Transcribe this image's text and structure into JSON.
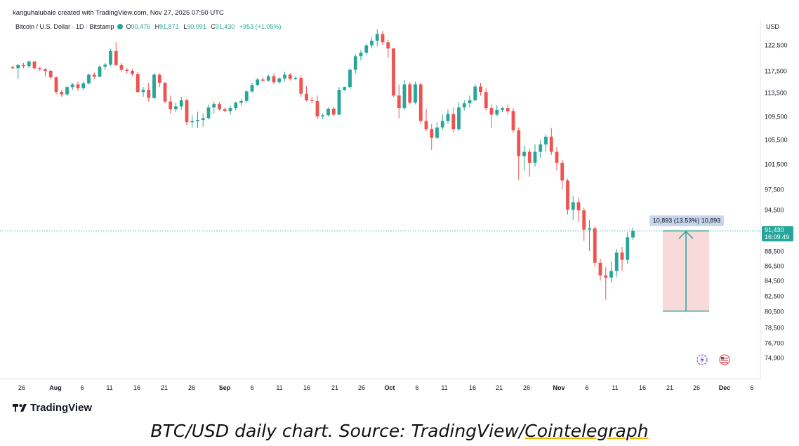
{
  "header": {
    "created_line": "kanguhalubale created with TradingView.com, Nov 27, 2025 07:50 UTC",
    "symbol": "Bitcoin / U.S. Dollar · 1D · Bitstamp",
    "open_label": "O",
    "open": "90,476",
    "high_label": "H",
    "high": "91,871",
    "low_label": "L",
    "low": "90,091",
    "close_label": "C",
    "close": "91,430",
    "change": "+953 (+1.05%)",
    "currency": "USD"
  },
  "brand": {
    "name": "TradingView",
    "logo_icon": "tradingview-logo-icon"
  },
  "caption": {
    "prefix": "BTC/USD daily chart. Source: TradingView/",
    "link": "Cointelegraph"
  },
  "colors": {
    "up": "#26a69a",
    "down": "#ef5350",
    "measure_fill": "#f8d4d4",
    "measure_line": "#26a69a",
    "price_label": "#26a69a"
  },
  "chart_data": {
    "type": "candlestick",
    "interval": "1D",
    "y_axis": {
      "ticks": [
        122500,
        117500,
        113500,
        109500,
        105500,
        101500,
        97500,
        94500,
        88500,
        86500,
        84500,
        82500,
        80500,
        78500,
        76700,
        74900
      ],
      "tick_labels": [
        "122,500",
        "117,500",
        "113,500",
        "109,500",
        "105,500",
        "101,500",
        "97,500",
        "94,500",
        "88,500",
        "86,500",
        "84,500",
        "82,500",
        "80,500",
        "78,500",
        "76,700",
        "74,900"
      ]
    },
    "x_axis": {
      "tick_labels": [
        "26",
        "Aug",
        "6",
        "11",
        "16",
        "21",
        "26",
        "Sep",
        "6",
        "11",
        "16",
        "21",
        "26",
        "Oct",
        "6",
        "11",
        "16",
        "21",
        "26",
        "Nov",
        "6",
        "11",
        "16",
        "21",
        "26",
        "Dec",
        "6"
      ],
      "bold": [
        "Aug",
        "Sep",
        "Oct",
        "Nov",
        "Dec"
      ]
    },
    "candles": [
      [
        118200,
        118500,
        117800,
        118000
      ],
      [
        118000,
        118800,
        116000,
        118600
      ],
      [
        118600,
        119000,
        118000,
        118400
      ],
      [
        118400,
        119500,
        118000,
        119300
      ],
      [
        119300,
        119400,
        117800,
        118000
      ],
      [
        118000,
        118300,
        117500,
        117800
      ],
      [
        117800,
        118000,
        116500,
        117500
      ],
      [
        117500,
        117700,
        116000,
        116300
      ],
      [
        116300,
        116500,
        113200,
        113600
      ],
      [
        113600,
        114000,
        112800,
        113200
      ],
      [
        113200,
        114800,
        112900,
        114500
      ],
      [
        114500,
        115300,
        114000,
        115000
      ],
      [
        115000,
        115500,
        113800,
        114300
      ],
      [
        114300,
        115500,
        114000,
        115200
      ],
      [
        115200,
        117000,
        115000,
        116800
      ],
      [
        116800,
        117200,
        116000,
        116400
      ],
      [
        116400,
        118600,
        116300,
        118300
      ],
      [
        118300,
        119000,
        117700,
        118700
      ],
      [
        118700,
        121700,
        118400,
        121300
      ],
      [
        121300,
        123000,
        118500,
        118600
      ],
      [
        118600,
        119000,
        117300,
        117700
      ],
      [
        117700,
        118000,
        117000,
        117500
      ],
      [
        117500,
        117800,
        116500,
        116900
      ],
      [
        116900,
        117300,
        113500,
        113600
      ],
      [
        113600,
        114500,
        112800,
        114000
      ],
      [
        114000,
        115300,
        112000,
        112600
      ],
      [
        112600,
        117100,
        112400,
        116800
      ],
      [
        116800,
        117000,
        114500,
        115300
      ],
      [
        115300,
        115400,
        111700,
        112000
      ],
      [
        112000,
        113000,
        110000,
        110700
      ],
      [
        110700,
        111800,
        110200,
        111200
      ],
      [
        111200,
        112800,
        110600,
        112200
      ],
      [
        112200,
        112500,
        108000,
        108500
      ],
      [
        108500,
        109700,
        107600,
        108700
      ],
      [
        108700,
        110300,
        107500,
        108900
      ],
      [
        108900,
        110000,
        107700,
        109200
      ],
      [
        109200,
        111500,
        109000,
        111000
      ],
      [
        111000,
        112000,
        110000,
        111600
      ],
      [
        111600,
        111900,
        110500,
        110700
      ],
      [
        110700,
        111000,
        110200,
        110400
      ],
      [
        110400,
        111300,
        109800,
        110900
      ],
      [
        110900,
        112000,
        110500,
        111800
      ],
      [
        111800,
        112500,
        111300,
        112100
      ],
      [
        112100,
        113900,
        111800,
        113700
      ],
      [
        113700,
        115300,
        113500,
        114900
      ],
      [
        114900,
        116200,
        114700,
        115900
      ],
      [
        115900,
        116300,
        115400,
        115700
      ],
      [
        115700,
        116800,
        115500,
        116500
      ],
      [
        116500,
        117000,
        115000,
        115400
      ],
      [
        115400,
        116300,
        115100,
        116100
      ],
      [
        116100,
        117300,
        115600,
        116800
      ],
      [
        116800,
        117100,
        115700,
        116000
      ],
      [
        116000,
        116500,
        115800,
        116200
      ],
      [
        116200,
        116600,
        112800,
        113300
      ],
      [
        113300,
        114700,
        112000,
        112200
      ],
      [
        112200,
        112800,
        111700,
        112100
      ],
      [
        112100,
        113000,
        109000,
        109500
      ],
      [
        109500,
        110000,
        109000,
        109700
      ],
      [
        109700,
        111000,
        109500,
        110800
      ],
      [
        110800,
        111200,
        109500,
        109800
      ],
      [
        109800,
        114500,
        109700,
        114000
      ],
      [
        114000,
        114600,
        113800,
        114500
      ],
      [
        114500,
        118000,
        114200,
        117700
      ],
      [
        117700,
        120700,
        117000,
        120300
      ],
      [
        120300,
        121500,
        119500,
        121000
      ],
      [
        121000,
        122700,
        120500,
        122400
      ],
      [
        122400,
        124000,
        121800,
        123300
      ],
      [
        123300,
        125500,
        122200,
        124600
      ],
      [
        124600,
        125200,
        122500,
        123000
      ],
      [
        123000,
        123500,
        120000,
        121800
      ],
      [
        121800,
        121900,
        112800,
        113000
      ],
      [
        113000,
        115000,
        109200,
        110900
      ],
      [
        110900,
        115800,
        110600,
        115000
      ],
      [
        115000,
        115400,
        111500,
        111800
      ],
      [
        111800,
        115500,
        111500,
        115000
      ],
      [
        115000,
        115300,
        108200,
        108700
      ],
      [
        108700,
        110800,
        107000,
        107300
      ],
      [
        107300,
        108200,
        103800,
        105800
      ],
      [
        105800,
        108500,
        105600,
        107600
      ],
      [
        107600,
        109800,
        107200,
        108700
      ],
      [
        108700,
        110700,
        108200,
        109900
      ],
      [
        109900,
        111000,
        106800,
        107300
      ],
      [
        107300,
        111800,
        107000,
        111000
      ],
      [
        111000,
        112200,
        110500,
        111700
      ],
      [
        111700,
        113000,
        111000,
        112200
      ],
      [
        112200,
        115000,
        112000,
        114600
      ],
      [
        114600,
        115300,
        113000,
        113600
      ],
      [
        113600,
        114300,
        110500,
        110900
      ],
      [
        110900,
        111500,
        107500,
        109800
      ],
      [
        109800,
        111400,
        109500,
        110600
      ],
      [
        110600,
        111100,
        110200,
        110900
      ],
      [
        110900,
        111500,
        109800,
        110400
      ],
      [
        110400,
        110900,
        106700,
        107100
      ],
      [
        107100,
        107600,
        99000,
        102800
      ],
      [
        102800,
        104500,
        100500,
        103500
      ],
      [
        103500,
        104000,
        99500,
        101700
      ],
      [
        101700,
        104700,
        101100,
        103500
      ],
      [
        103500,
        105500,
        102500,
        104700
      ],
      [
        104700,
        106300,
        103500,
        106000
      ],
      [
        106000,
        107500,
        103000,
        103500
      ],
      [
        103500,
        104300,
        100500,
        101700
      ],
      [
        101700,
        102200,
        97500,
        98900
      ],
      [
        98900,
        99200,
        93800,
        94500
      ],
      [
        94500,
        96500,
        93000,
        95600
      ],
      [
        95600,
        96300,
        92700,
        94400
      ],
      [
        94400,
        94800,
        90000,
        91600
      ],
      [
        91600,
        93000,
        88500,
        91800
      ],
      [
        91800,
        92100,
        86400,
        86900
      ],
      [
        86900,
        87500,
        84500,
        85200
      ],
      [
        85200,
        86300,
        82000,
        84900
      ],
      [
        84900,
        87100,
        84200,
        85800
      ],
      [
        85800,
        88800,
        85000,
        88300
      ],
      [
        88300,
        89100,
        85800,
        87300
      ],
      [
        87300,
        91200,
        86800,
        90500
      ],
      [
        90476,
        91871,
        90091,
        91430
      ]
    ],
    "annotations": [
      {
        "type": "price_range",
        "text": "10,893 (13.53%) 10,893",
        "from": 80537,
        "to": 91430
      },
      {
        "type": "last_price",
        "price_label": "91,430",
        "countdown": "16:09:49"
      }
    ]
  }
}
